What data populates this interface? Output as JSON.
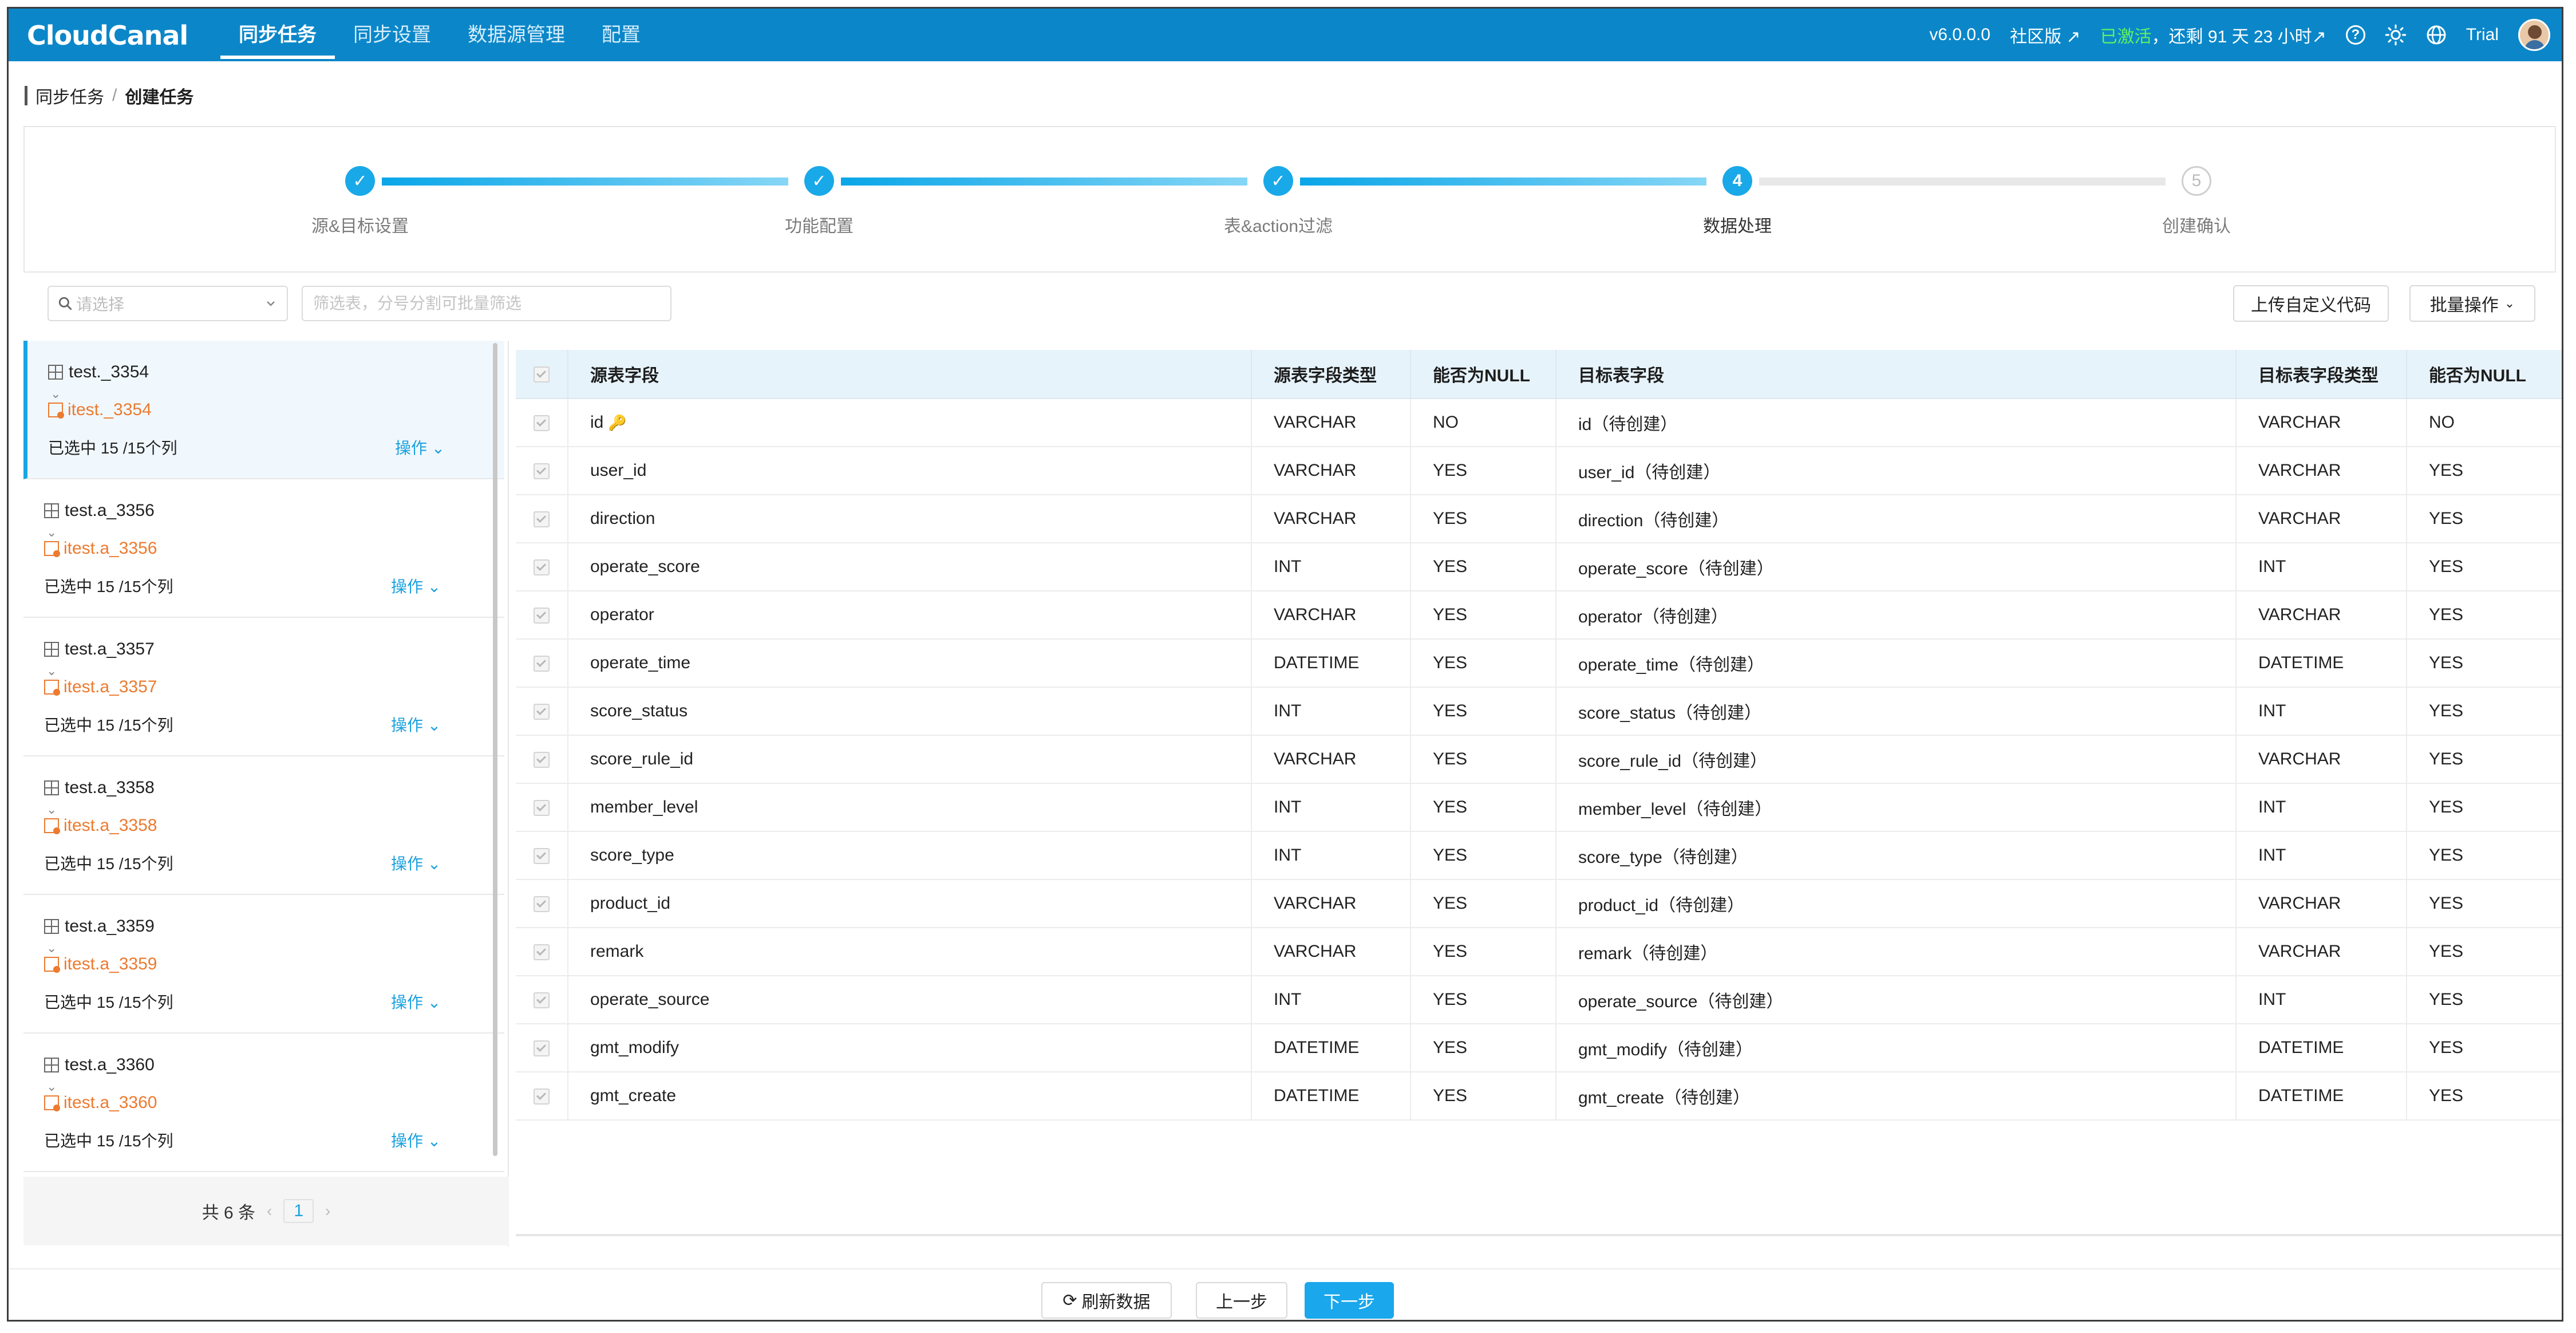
{
  "app": {
    "logo": "CloudCanal",
    "nav": [
      "同步任务",
      "同步设置",
      "数据源管理",
      "配置"
    ],
    "active_nav": 0,
    "version": "v6.0.0.0",
    "edition": "社区版 ↗",
    "activated": "已激活",
    "remaining": "，还剩 91 天 23 小时↗",
    "user": "Trial",
    "help_icon": "question-circle-icon",
    "theme_icon": "sun-icon",
    "language_icon": "globe-icon"
  },
  "breadcrumb": {
    "parent": "同步任务",
    "separator": "/",
    "current": "创建任务"
  },
  "steps": [
    {
      "label": "源&目标设置",
      "done": true,
      "number": ""
    },
    {
      "label": "功能配置",
      "done": true,
      "number": ""
    },
    {
      "label": "表&action过滤",
      "done": true,
      "number": ""
    },
    {
      "label": "数据处理",
      "done": false,
      "current": true,
      "number": "4"
    },
    {
      "label": "创建确认",
      "done": false,
      "number": "5"
    }
  ],
  "toolbar": {
    "select_placeholder": "请选择",
    "filter_placeholder": "筛选表，分号分割可批量筛选",
    "upload_label": "上传自定义代码",
    "batch_label": "批量操作"
  },
  "tables": [
    {
      "src": "test._3354",
      "dst": "itest._3354",
      "count": "已选中 15 /15个列",
      "op": "操作"
    },
    {
      "src": "test.a_3356",
      "dst": "itest.a_3356",
      "count": "已选中 15 /15个列",
      "op": "操作"
    },
    {
      "src": "test.a_3357",
      "dst": "itest.a_3357",
      "count": "已选中 15 /15个列",
      "op": "操作"
    },
    {
      "src": "test.a_3358",
      "dst": "itest.a_3358",
      "count": "已选中 15 /15个列",
      "op": "操作"
    },
    {
      "src": "test.a_3359",
      "dst": "itest.a_3359",
      "count": "已选中 15 /15个列",
      "op": "操作"
    },
    {
      "src": "test.a_3360",
      "dst": "itest.a_3360",
      "count": "已选中 15 /15个列",
      "op": "操作"
    }
  ],
  "pagination": {
    "total": "共 6 条",
    "page": "1",
    "prev": "‹",
    "next": "›"
  },
  "columns_header": [
    "源表字段",
    "源表字段类型",
    "能否为NULL",
    "目标表字段",
    "目标表字段类型",
    "能否为NULL"
  ],
  "columns": [
    {
      "src": "id",
      "type": "VARCHAR",
      "nullable": "NO",
      "dst": "id（待创建）",
      "dst_type": "VARCHAR",
      "dst_nullable": "NO",
      "key": true
    },
    {
      "src": "user_id",
      "type": "VARCHAR",
      "nullable": "YES",
      "dst": "user_id（待创建）",
      "dst_type": "VARCHAR",
      "dst_nullable": "YES"
    },
    {
      "src": "direction",
      "type": "VARCHAR",
      "nullable": "YES",
      "dst": "direction（待创建）",
      "dst_type": "VARCHAR",
      "dst_nullable": "YES"
    },
    {
      "src": "operate_score",
      "type": "INT",
      "nullable": "YES",
      "dst": "operate_score（待创建）",
      "dst_type": "INT",
      "dst_nullable": "YES"
    },
    {
      "src": "operator",
      "type": "VARCHAR",
      "nullable": "YES",
      "dst": "operator（待创建）",
      "dst_type": "VARCHAR",
      "dst_nullable": "YES"
    },
    {
      "src": "operate_time",
      "type": "DATETIME",
      "nullable": "YES",
      "dst": "operate_time（待创建）",
      "dst_type": "DATETIME",
      "dst_nullable": "YES"
    },
    {
      "src": "score_status",
      "type": "INT",
      "nullable": "YES",
      "dst": "score_status（待创建）",
      "dst_type": "INT",
      "dst_nullable": "YES"
    },
    {
      "src": "score_rule_id",
      "type": "VARCHAR",
      "nullable": "YES",
      "dst": "score_rule_id（待创建）",
      "dst_type": "VARCHAR",
      "dst_nullable": "YES"
    },
    {
      "src": "member_level",
      "type": "INT",
      "nullable": "YES",
      "dst": "member_level（待创建）",
      "dst_type": "INT",
      "dst_nullable": "YES"
    },
    {
      "src": "score_type",
      "type": "INT",
      "nullable": "YES",
      "dst": "score_type（待创建）",
      "dst_type": "INT",
      "dst_nullable": "YES"
    },
    {
      "src": "product_id",
      "type": "VARCHAR",
      "nullable": "YES",
      "dst": "product_id（待创建）",
      "dst_type": "VARCHAR",
      "dst_nullable": "YES"
    },
    {
      "src": "remark",
      "type": "VARCHAR",
      "nullable": "YES",
      "dst": "remark（待创建）",
      "dst_type": "VARCHAR",
      "dst_nullable": "YES"
    },
    {
      "src": "operate_source",
      "type": "INT",
      "nullable": "YES",
      "dst": "operate_source（待创建）",
      "dst_type": "INT",
      "dst_nullable": "YES"
    },
    {
      "src": "gmt_modify",
      "type": "DATETIME",
      "nullable": "YES",
      "dst": "gmt_modify（待创建）",
      "dst_type": "DATETIME",
      "dst_nullable": "YES"
    },
    {
      "src": "gmt_create",
      "type": "DATETIME",
      "nullable": "YES",
      "dst": "gmt_create（待创建）",
      "dst_type": "DATETIME",
      "dst_nullable": "YES"
    }
  ],
  "footer": {
    "refresh": "刷新数据",
    "prev": "上一步",
    "next": "下一步"
  },
  "colors": {
    "brand": "#0b87c9",
    "accent": "#19a9e8",
    "target": "#ec7a2f",
    "activated": "#5ff063"
  }
}
